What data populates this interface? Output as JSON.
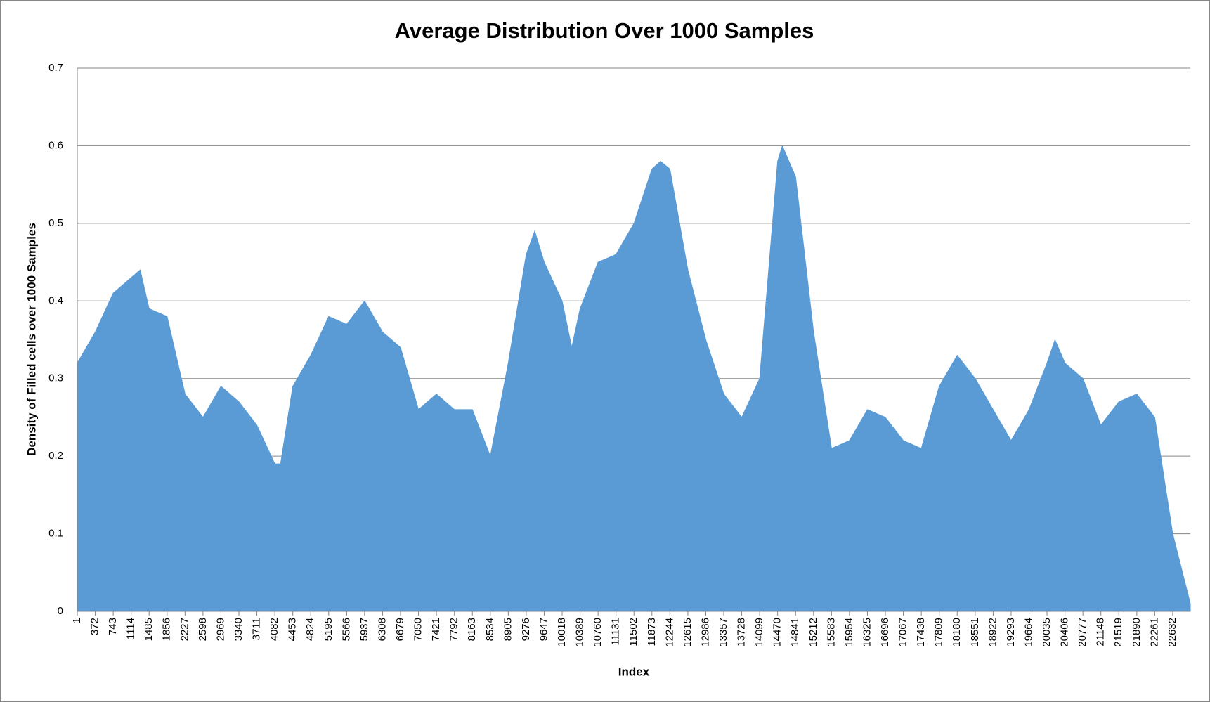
{
  "chart_data": {
    "type": "area",
    "title": "Average Distribution Over 1000 Samples",
    "x_label": "Index",
    "y_label": "Density of Filled cells over 1000 Samples",
    "color": "#5b9bd5",
    "grid": true,
    "x": [
      1,
      372,
      743,
      1114,
      1300,
      1485,
      1856,
      2227,
      2598,
      2969,
      3340,
      3711,
      4082,
      4200,
      4453,
      4824,
      5195,
      5566,
      5937,
      6308,
      6679,
      7050,
      7421,
      7792,
      8163,
      8534,
      8905,
      9276,
      9451,
      9647,
      10018,
      10216,
      10389,
      10760,
      11131,
      11502,
      11873,
      12050,
      12244,
      12615,
      12986,
      13357,
      13728,
      14099,
      14470,
      14567,
      14841,
      15212,
      15583,
      15954,
      16325,
      16696,
      17067,
      17438,
      17809,
      18180,
      18551,
      18922,
      19293,
      19664,
      20035,
      20200,
      20406,
      20777,
      21148,
      21519,
      21890,
      22261,
      22632,
      22996
    ],
    "values": [
      0.32,
      0.36,
      0.41,
      0.43,
      0.44,
      0.39,
      0.38,
      0.28,
      0.25,
      0.29,
      0.27,
      0.24,
      0.19,
      0.19,
      0.29,
      0.33,
      0.38,
      0.37,
      0.4,
      0.36,
      0.34,
      0.26,
      0.28,
      0.26,
      0.26,
      0.2,
      0.32,
      0.46,
      0.49,
      0.45,
      0.4,
      0.34,
      0.39,
      0.45,
      0.46,
      0.5,
      0.57,
      0.58,
      0.57,
      0.44,
      0.35,
      0.28,
      0.25,
      0.3,
      0.58,
      0.6,
      0.56,
      0.36,
      0.21,
      0.22,
      0.26,
      0.25,
      0.22,
      0.21,
      0.29,
      0.33,
      0.3,
      0.26,
      0.22,
      0.26,
      0.32,
      0.35,
      0.32,
      0.3,
      0.24,
      0.27,
      0.28,
      0.25,
      0.1,
      0.01
    ],
    "xlim": [
      1,
      22996
    ],
    "xticks": [
      1,
      372,
      743,
      1114,
      1485,
      1856,
      2227,
      2598,
      2969,
      3340,
      3711,
      4082,
      4453,
      4824,
      5195,
      5566,
      5937,
      6308,
      6679,
      7050,
      7421,
      7792,
      8163,
      8534,
      8905,
      9276,
      9647,
      10018,
      10389,
      10760,
      11131,
      11502,
      11873,
      12244,
      12615,
      12986,
      13357,
      13728,
      14099,
      14470,
      14841,
      15212,
      15583,
      15954,
      16325,
      16696,
      17067,
      17438,
      17809,
      18180,
      18551,
      18922,
      19293,
      19664,
      20035,
      20406,
      20777,
      21148,
      21519,
      21890,
      22261,
      22632
    ],
    "ylim": [
      0,
      0.7
    ],
    "yticks": [
      0,
      0.1,
      0.2,
      0.3,
      0.4,
      0.5,
      0.6,
      0.7
    ]
  }
}
